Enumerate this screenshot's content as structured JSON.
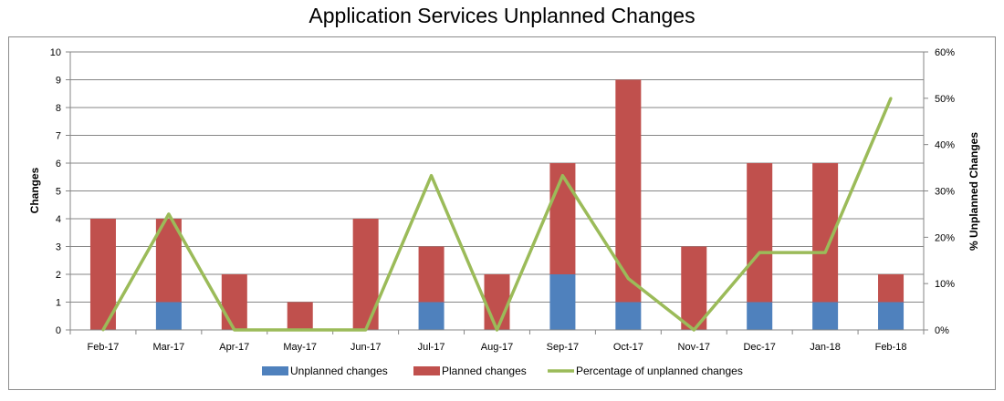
{
  "chart_data": {
    "type": "bar",
    "title": "Application Services Unplanned Changes",
    "ylabel": "Changes",
    "y2label": "% Unplanned Changes",
    "categories": [
      "Feb-17",
      "Mar-17",
      "Apr-17",
      "May-17",
      "Jun-17",
      "Jul-17",
      "Aug-17",
      "Sep-17",
      "Oct-17",
      "Nov-17",
      "Dec-17",
      "Jan-18",
      "Feb-18"
    ],
    "ylim": [
      0,
      10
    ],
    "yticks": [
      "0",
      "1",
      "2",
      "3",
      "4",
      "5",
      "6",
      "7",
      "8",
      "9",
      "10"
    ],
    "y2lim": [
      0,
      60
    ],
    "y2ticks": [
      "0%",
      "10%",
      "20%",
      "30%",
      "40%",
      "50%",
      "60%"
    ],
    "grid": true,
    "legend_position": "bottom",
    "series": [
      {
        "name": "Unplanned changes",
        "type": "bar",
        "stacked": true,
        "color": "#4f81bd",
        "values": [
          0,
          1,
          0,
          0,
          0,
          1,
          0,
          2,
          1,
          0,
          1,
          1,
          1
        ]
      },
      {
        "name": "Planned changes",
        "type": "bar",
        "stacked": true,
        "color": "#c0504d",
        "values": [
          4,
          3,
          2,
          1,
          4,
          2,
          2,
          4,
          8,
          3,
          5,
          5,
          1
        ]
      },
      {
        "name": "Percentage of unplanned changes",
        "type": "line",
        "axis": "secondary",
        "color": "#9bbb59",
        "values": [
          0,
          25,
          0,
          0,
          0,
          33.3,
          0,
          33.3,
          11.1,
          0,
          16.7,
          16.7,
          50
        ]
      }
    ]
  }
}
